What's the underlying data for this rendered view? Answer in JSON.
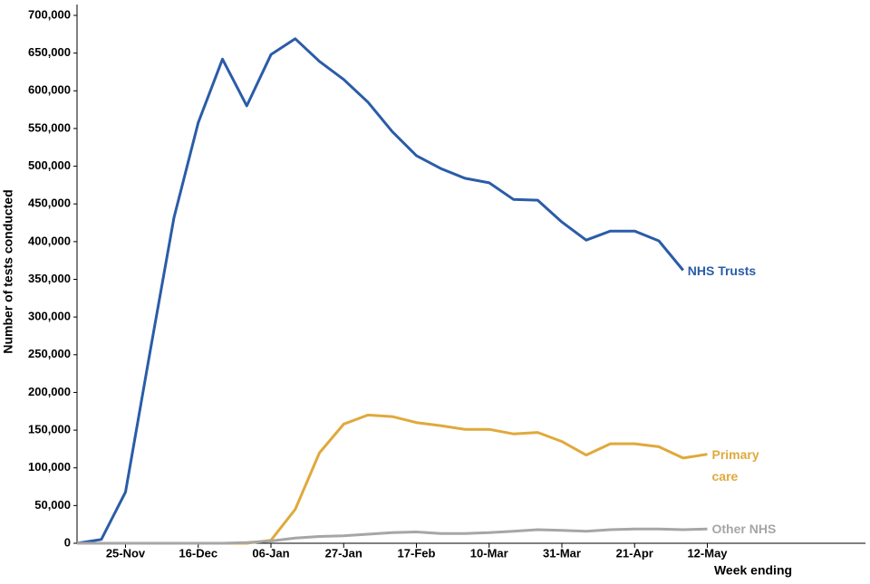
{
  "chart_data": {
    "type": "line",
    "x_label": "Week ending",
    "y_label": "Number of tests conducted",
    "categories": [
      null,
      null,
      "25-Nov",
      null,
      null,
      "16-Dec",
      null,
      null,
      "06-Jan",
      null,
      null,
      "27-Jan",
      null,
      null,
      "17-Feb",
      null,
      null,
      "10-Mar",
      null,
      null,
      "31-Mar",
      null,
      null,
      "21-Apr",
      null,
      null,
      "12-May"
    ],
    "series": [
      {
        "name": "NHS Trusts",
        "color": "#2a5ca8",
        "values": [
          0,
          5000,
          68000,
          252000,
          432000,
          558000,
          642000,
          580000,
          648000,
          669000,
          639000,
          615000,
          585000,
          546000,
          514000,
          497000,
          484000,
          478000,
          456000,
          455000,
          426000,
          402000,
          414000,
          414000,
          401000,
          362000,
          null
        ]
      },
      {
        "name": "Primary care",
        "color": "#e0a93b",
        "values": [
          0,
          0,
          0,
          0,
          0,
          0,
          0,
          0,
          4000,
          45000,
          120000,
          158000,
          170000,
          168000,
          160000,
          156000,
          151000,
          151000,
          145000,
          147000,
          135000,
          117000,
          132000,
          132000,
          128000,
          113000,
          118000
        ]
      },
      {
        "name": "Other NHS",
        "color": "#a6a6a6",
        "values": [
          0,
          0,
          0,
          0,
          0,
          0,
          0,
          1000,
          3000,
          7000,
          9000,
          10000,
          12000,
          14000,
          15000,
          13000,
          13000,
          14000,
          16000,
          18000,
          17000,
          16000,
          18000,
          19000,
          19000,
          18000,
          19000
        ]
      }
    ],
    "ylim": [
      0,
      700000
    ],
    "yticks": [
      {
        "value": 0,
        "label": "0"
      },
      {
        "value": 50000,
        "label": "50,000"
      },
      {
        "value": 100000,
        "label": "100,000"
      },
      {
        "value": 150000,
        "label": "150,000"
      },
      {
        "value": 200000,
        "label": "200,000"
      },
      {
        "value": 250000,
        "label": "250,000"
      },
      {
        "value": 300000,
        "label": "300,000"
      },
      {
        "value": 350000,
        "label": "350,000"
      },
      {
        "value": 400000,
        "label": "400,000"
      },
      {
        "value": 450000,
        "label": "450,000"
      },
      {
        "value": 500000,
        "label": "500,000"
      },
      {
        "value": 550000,
        "label": "550,000"
      },
      {
        "value": 600000,
        "label": "600,000"
      },
      {
        "value": 650000,
        "label": "650,000"
      },
      {
        "value": 700000,
        "label": "700,000"
      }
    ],
    "grid": false
  }
}
